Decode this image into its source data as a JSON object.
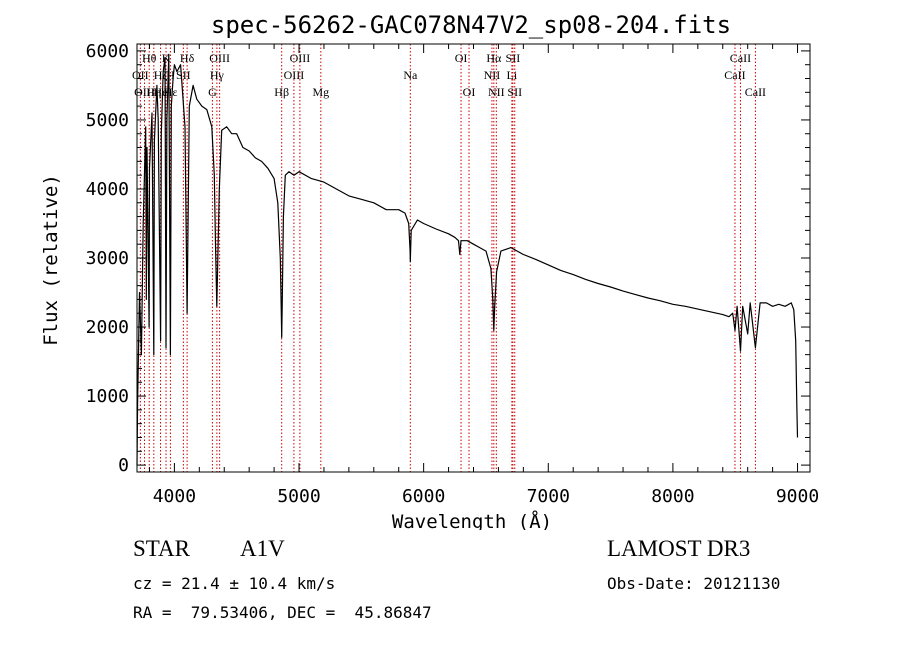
{
  "chart_data": {
    "type": "line",
    "title": "spec-56262-GAC078N47V2_sp08-204.fits",
    "xlabel": "Wavelength (Å)",
    "ylabel": "Flux (relative)",
    "xlim": [
      3700,
      9100
    ],
    "ylim": [
      -100,
      6100
    ],
    "x_ticks": [
      4000,
      5000,
      6000,
      7000,
      8000,
      9000
    ],
    "x_tick_labels": [
      "4000",
      "5000",
      "6000",
      "7000",
      "8000",
      "9000"
    ],
    "y_ticks": [
      0,
      1000,
      2000,
      3000,
      4000,
      5000,
      6000
    ],
    "y_tick_labels": [
      "0",
      "1000",
      "2000",
      "3000",
      "4000",
      "5000",
      "6000"
    ],
    "series": [
      {
        "name": "spectrum",
        "x": [
          3700,
          3705,
          3720,
          3735,
          3750,
          3770,
          3775,
          3780,
          3797,
          3800,
          3820,
          3835,
          3840,
          3860,
          3870,
          3889,
          3895,
          3910,
          3925,
          3933,
          3940,
          3955,
          3968,
          3975,
          3990,
          4000,
          4020,
          4050,
          4085,
          4102,
          4120,
          4150,
          4180,
          4220,
          4260,
          4300,
          4320,
          4330,
          4340,
          4350,
          4360,
          4380,
          4420,
          4460,
          4500,
          4550,
          4600,
          4650,
          4700,
          4750,
          4800,
          4830,
          4850,
          4858,
          4861,
          4865,
          4875,
          4890,
          4920,
          4960,
          5000,
          5100,
          5200,
          5300,
          5400,
          5500,
          5600,
          5700,
          5800,
          5850,
          5880,
          5891,
          5893,
          5900,
          5950,
          6000,
          6100,
          6200,
          6250,
          6280,
          6290,
          6300,
          6350,
          6400,
          6450,
          6500,
          6540,
          6555,
          6563,
          6570,
          6585,
          6620,
          6700,
          6800,
          6900,
          7000,
          7100,
          7200,
          7300,
          7400,
          7500,
          7600,
          7700,
          7800,
          7900,
          8000,
          8100,
          8200,
          8300,
          8400,
          8450,
          8480,
          8498,
          8515,
          8542,
          8560,
          8600,
          8620,
          8662,
          8700,
          8750,
          8800,
          8850,
          8900,
          8950,
          8970,
          8985,
          8995,
          9000
        ],
        "y": [
          0,
          900,
          2500,
          1600,
          3500,
          4900,
          2400,
          4600,
          2000,
          4300,
          5100,
          1600,
          4700,
          5500,
          5000,
          1800,
          4800,
          5700,
          5900,
          1700,
          5000,
          5950,
          1600,
          5200,
          5600,
          5800,
          5700,
          5800,
          4900,
          2200,
          5200,
          5500,
          5300,
          5200,
          5150,
          4900,
          4200,
          3200,
          2300,
          3100,
          4000,
          4850,
          4900,
          4800,
          4800,
          4600,
          4550,
          4450,
          4400,
          4300,
          4150,
          3800,
          3000,
          2200,
          1850,
          2300,
          3600,
          4200,
          4250,
          4200,
          4250,
          4150,
          4100,
          4000,
          3900,
          3850,
          3800,
          3700,
          3700,
          3650,
          3500,
          3100,
          2950,
          3400,
          3550,
          3500,
          3420,
          3350,
          3300,
          3250,
          3050,
          3250,
          3250,
          3200,
          3150,
          3100,
          2850,
          2400,
          1950,
          2300,
          2800,
          3100,
          3150,
          3050,
          2980,
          2900,
          2820,
          2760,
          2690,
          2630,
          2580,
          2520,
          2470,
          2420,
          2380,
          2330,
          2300,
          2260,
          2220,
          2180,
          2150,
          2200,
          1950,
          2300,
          1650,
          2300,
          1900,
          2350,
          1700,
          2350,
          2350,
          2300,
          2330,
          2300,
          2350,
          2250,
          1800,
          800,
          400
        ]
      }
    ],
    "annotations": [
      {
        "label": "Hθ",
        "x": 3798,
        "row": 1
      },
      {
        "label": "OII",
        "x": 3727,
        "row": 2
      },
      {
        "label": "OIII",
        "x": 3760,
        "row": 3
      },
      {
        "label": "Hη",
        "x": 3835,
        "row": 3
      },
      {
        "label": "Hζ",
        "x": 3889,
        "row": 2
      },
      {
        "label": "He",
        "x": 3888,
        "row": 3
      },
      {
        "label": "K",
        "x": 3933,
        "row": 1
      },
      {
        "label": "H",
        "x": 3968,
        "row": 2
      },
      {
        "label": "Hε",
        "x": 3970,
        "row": 3
      },
      {
        "label": "SII",
        "x": 4072,
        "row": 2
      },
      {
        "label": "Hδ",
        "x": 4102,
        "row": 1
      },
      {
        "label": "OIII",
        "x": 4363,
        "row": 1
      },
      {
        "label": "Hγ",
        "x": 4341,
        "row": 2
      },
      {
        "label": "G",
        "x": 4305,
        "row": 3
      },
      {
        "label": "Hβ",
        "x": 4861,
        "row": 3
      },
      {
        "label": "OIII",
        "x": 5007,
        "row": 1
      },
      {
        "label": "OIII",
        "x": 4959,
        "row": 2
      },
      {
        "label": "Mg",
        "x": 5175,
        "row": 3
      },
      {
        "label": "Na",
        "x": 5893,
        "row": 2
      },
      {
        "label": "OI",
        "x": 6300,
        "row": 1
      },
      {
        "label": "OI",
        "x": 6364,
        "row": 3
      },
      {
        "label": "Hα",
        "x": 6563,
        "row": 1
      },
      {
        "label": "NII",
        "x": 6548,
        "row": 2
      },
      {
        "label": "NII",
        "x": 6583,
        "row": 3
      },
      {
        "label": "SII",
        "x": 6716,
        "row": 1
      },
      {
        "label": "Li",
        "x": 6708,
        "row": 2
      },
      {
        "label": "SII",
        "x": 6731,
        "row": 3
      },
      {
        "label": "CaII",
        "x": 8542,
        "row": 1
      },
      {
        "label": "CaII",
        "x": 8498,
        "row": 2
      },
      {
        "label": "CaII",
        "x": 8662,
        "row": 3
      }
    ],
    "line_markers": [
      3727,
      3760,
      3798,
      3835,
      3889,
      3933,
      3968,
      4072,
      4102,
      4305,
      4341,
      4363,
      4861,
      4959,
      5007,
      5175,
      5893,
      6300,
      6364,
      6548,
      6563,
      6583,
      6708,
      6716,
      6731,
      8498,
      8542,
      8662
    ],
    "colors": {
      "spectrum": "#000000",
      "markers": "#cc0000",
      "axes": "#000000"
    }
  },
  "info": {
    "object_type": "STAR",
    "spectral_type": "A1V",
    "survey": "LAMOST DR3",
    "cz": "cz = 21.4 ± 10.4 km/s",
    "obs_date": "Obs-Date: 20121130",
    "radec": "RA =  79.53406, DEC =  45.86847"
  }
}
